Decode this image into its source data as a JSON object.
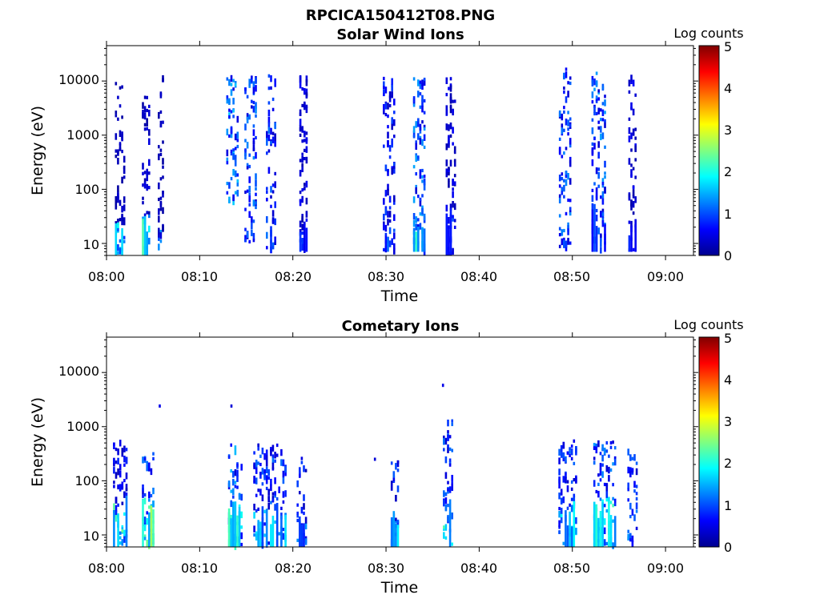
{
  "figure": {
    "title": "RPCICA150412T08.PNG"
  },
  "colors": {
    "colormap": "jet",
    "stops": [
      "#00008f",
      "#0000ff",
      "#00ffff",
      "#ffff00",
      "#ff0000",
      "#800000"
    ]
  },
  "chart_data": [
    {
      "type": "heatmap",
      "title": "Solar Wind Ions",
      "xlabel": "Time",
      "ylabel": "Energy (eV)",
      "x_ticks": [
        "08:00",
        "08:10",
        "08:20",
        "08:30",
        "08:40",
        "08:50",
        "09:00"
      ],
      "xlim_minutes_after_0800": [
        0,
        63
      ],
      "y_scale": "log",
      "y_ticks": [
        "10",
        "100",
        "1000",
        "10000"
      ],
      "ylim": [
        6,
        45000
      ],
      "colorbar": {
        "label": "Log counts",
        "range": [
          0,
          5
        ],
        "ticks": [
          "0",
          "1",
          "2",
          "3",
          "4",
          "5"
        ]
      },
      "grid": false,
      "bursts": [
        {
          "center_min": 1.5,
          "width_min": 1.2,
          "e_min": 6,
          "e_max": 10000,
          "low_energy_max": 25,
          "level_low": 1.9,
          "level_high": 0.3
        },
        {
          "center_min": 4.3,
          "width_min": 1.0,
          "e_min": 6,
          "e_max": 6000,
          "low_energy_max": 35,
          "level_low": 2.1,
          "level_high": 0.4
        },
        {
          "center_min": 5.8,
          "width_min": 0.6,
          "e_min": 8,
          "e_max": 14000,
          "low_energy_max": 18,
          "level_low": 1.2,
          "level_high": 0.3
        },
        {
          "center_min": 13.5,
          "width_min": 1.3,
          "e_min": 50,
          "e_max": 14000,
          "low_energy_max": 0,
          "level_low": 1.2,
          "level_high": 1.4
        },
        {
          "center_min": 15.5,
          "width_min": 1.4,
          "e_min": 8,
          "e_max": 14000,
          "low_energy_max": 0,
          "level_low": 1.0,
          "level_high": 1.1
        },
        {
          "center_min": 17.7,
          "width_min": 1.2,
          "e_min": 7,
          "e_max": 14000,
          "low_energy_max": 20,
          "level_low": 1.0,
          "level_high": 1.0
        },
        {
          "center_min": 21.2,
          "width_min": 1.0,
          "e_min": 7,
          "e_max": 14000,
          "low_energy_max": 20,
          "level_low": 0.8,
          "level_high": 0.5
        },
        {
          "center_min": 30.3,
          "width_min": 1.3,
          "e_min": 7,
          "e_max": 12000,
          "low_energy_max": 20,
          "level_low": 1.0,
          "level_high": 0.8
        },
        {
          "center_min": 33.6,
          "width_min": 1.4,
          "e_min": 7,
          "e_max": 12000,
          "low_energy_max": 20,
          "level_low": 1.8,
          "level_high": 1.2
        },
        {
          "center_min": 37.0,
          "width_min": 1.2,
          "e_min": 6,
          "e_max": 12000,
          "low_energy_max": 40,
          "level_low": 0.9,
          "level_high": 0.5
        },
        {
          "center_min": 49.2,
          "width_min": 1.3,
          "e_min": 8,
          "e_max": 18000,
          "low_energy_max": 15,
          "level_low": 0.9,
          "level_high": 1.1
        },
        {
          "center_min": 52.8,
          "width_min": 1.5,
          "e_min": 7,
          "e_max": 15000,
          "low_energy_max": 45,
          "level_low": 1.0,
          "level_high": 1.2
        },
        {
          "center_min": 56.5,
          "width_min": 1.0,
          "e_min": 7,
          "e_max": 15000,
          "low_energy_max": 20,
          "level_low": 0.8,
          "level_high": 0.5
        }
      ]
    },
    {
      "type": "heatmap",
      "title": "Cometary Ions",
      "xlabel": "Time",
      "ylabel": "Energy (eV)",
      "x_ticks": [
        "08:00",
        "08:10",
        "08:20",
        "08:30",
        "08:40",
        "08:50",
        "09:00"
      ],
      "xlim_minutes_after_0800": [
        0,
        63
      ],
      "y_scale": "log",
      "y_ticks": [
        "10",
        "100",
        "1000",
        "10000"
      ],
      "ylim": [
        6,
        45000
      ],
      "colorbar": {
        "label": "Log counts",
        "range": [
          0,
          5
        ],
        "ticks": [
          "0",
          "1",
          "2",
          "3",
          "4",
          "5"
        ]
      },
      "grid": false,
      "bursts": [
        {
          "center_min": 1.5,
          "width_min": 1.6,
          "e_min": 6,
          "e_max": 600,
          "low_energy_max": 40,
          "level_low": 2.0,
          "level_high": 0.7
        },
        {
          "center_min": 4.5,
          "width_min": 1.4,
          "e_min": 6,
          "e_max": 350,
          "low_energy_max": 50,
          "level_low": 2.3,
          "level_high": 1.1
        },
        {
          "center_min": 13.8,
          "width_min": 1.5,
          "e_min": 6,
          "e_max": 500,
          "low_energy_max": 40,
          "level_low": 2.0,
          "level_high": 1.3
        },
        {
          "center_min": 17.5,
          "width_min": 3.5,
          "e_min": 6,
          "e_max": 500,
          "low_energy_max": 30,
          "level_low": 1.5,
          "level_high": 1.0
        },
        {
          "center_min": 21.0,
          "width_min": 1.2,
          "e_min": 6,
          "e_max": 300,
          "low_energy_max": 20,
          "level_low": 1.2,
          "level_high": 0.8
        },
        {
          "center_min": 31.0,
          "width_min": 1.0,
          "e_min": 6,
          "e_max": 250,
          "low_energy_max": 20,
          "level_low": 1.6,
          "level_high": 0.9
        },
        {
          "center_min": 36.7,
          "width_min": 1.2,
          "e_min": 6,
          "e_max": 1500,
          "low_energy_max": 40,
          "level_low": 1.9,
          "level_high": 1.0
        },
        {
          "center_min": 49.5,
          "width_min": 2.0,
          "e_min": 6,
          "e_max": 600,
          "low_energy_max": 30,
          "level_low": 1.6,
          "level_high": 1.0
        },
        {
          "center_min": 53.5,
          "width_min": 2.5,
          "e_min": 6,
          "e_max": 600,
          "low_energy_max": 60,
          "level_low": 1.9,
          "level_high": 1.2
        },
        {
          "center_min": 56.5,
          "width_min": 1.2,
          "e_min": 6,
          "e_max": 400,
          "low_energy_max": 30,
          "level_low": 1.3,
          "level_high": 1.0
        }
      ],
      "isolated_points": [
        {
          "minute": 5.6,
          "energy": 2400,
          "level": 0.5
        },
        {
          "minute": 13.3,
          "energy": 2400,
          "level": 0.4
        },
        {
          "minute": 28.7,
          "energy": 250,
          "level": 0.4
        },
        {
          "minute": 36.0,
          "energy": 5800,
          "level": 0.5
        }
      ]
    }
  ]
}
